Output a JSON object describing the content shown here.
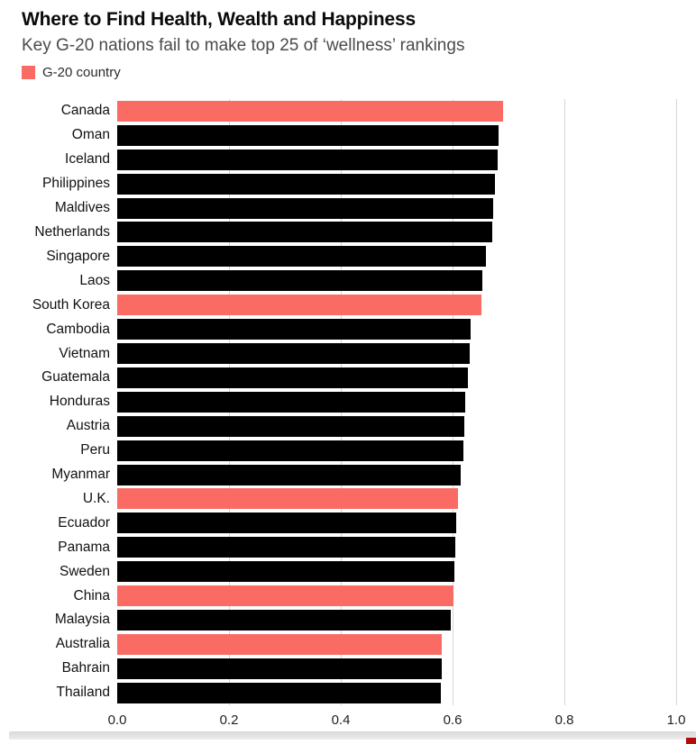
{
  "header": {
    "title": "Where to Find Health, Wealth and Happiness",
    "subtitle": "Key G-20 nations fail to make top 25 of ‘wellness’ rankings",
    "legend": {
      "label": "G-20 country"
    }
  },
  "colors": {
    "bar_default": "#000000",
    "bar_highlight": "#fa6b63",
    "gridline": "#d6d6d6"
  },
  "chart_data": {
    "type": "bar",
    "orientation": "horizontal",
    "title": "Where to Find Health, Wealth and Happiness",
    "subtitle": "Key G-20 nations fail to make top 25 of ‘wellness’ rankings",
    "categories": [
      "Canada",
      "Oman",
      "Iceland",
      "Philippines",
      "Maldives",
      "Netherlands",
      "Singapore",
      "Laos",
      "South Korea",
      "Cambodia",
      "Vietnam",
      "Guatemala",
      "Honduras",
      "Austria",
      "Peru",
      "Myanmar",
      "U.K.",
      "Ecuador",
      "Panama",
      "Sweden",
      "China",
      "Malaysia",
      "Australia",
      "Bahrain",
      "Thailand"
    ],
    "values": [
      0.69,
      0.682,
      0.68,
      0.676,
      0.673,
      0.671,
      0.659,
      0.654,
      0.652,
      0.633,
      0.631,
      0.627,
      0.623,
      0.621,
      0.62,
      0.615,
      0.61,
      0.606,
      0.605,
      0.604,
      0.601,
      0.597,
      0.581,
      0.58,
      0.579
    ],
    "highlighted": [
      "Canada",
      "South Korea",
      "U.K.",
      "China",
      "Australia"
    ],
    "highlight_legend": "G-20 country",
    "xlabel": "",
    "ylabel": "",
    "xlim": [
      0.0,
      1.0
    ],
    "x_ticks": [
      0.0,
      0.2,
      0.4,
      0.6,
      0.8,
      1.0
    ],
    "x_tick_labels": [
      "0.0",
      "0.2",
      "0.4",
      "0.6",
      "0.8",
      "1.0"
    ],
    "grid": "vertical",
    "legend_position": "top-left",
    "data_labels": false
  }
}
